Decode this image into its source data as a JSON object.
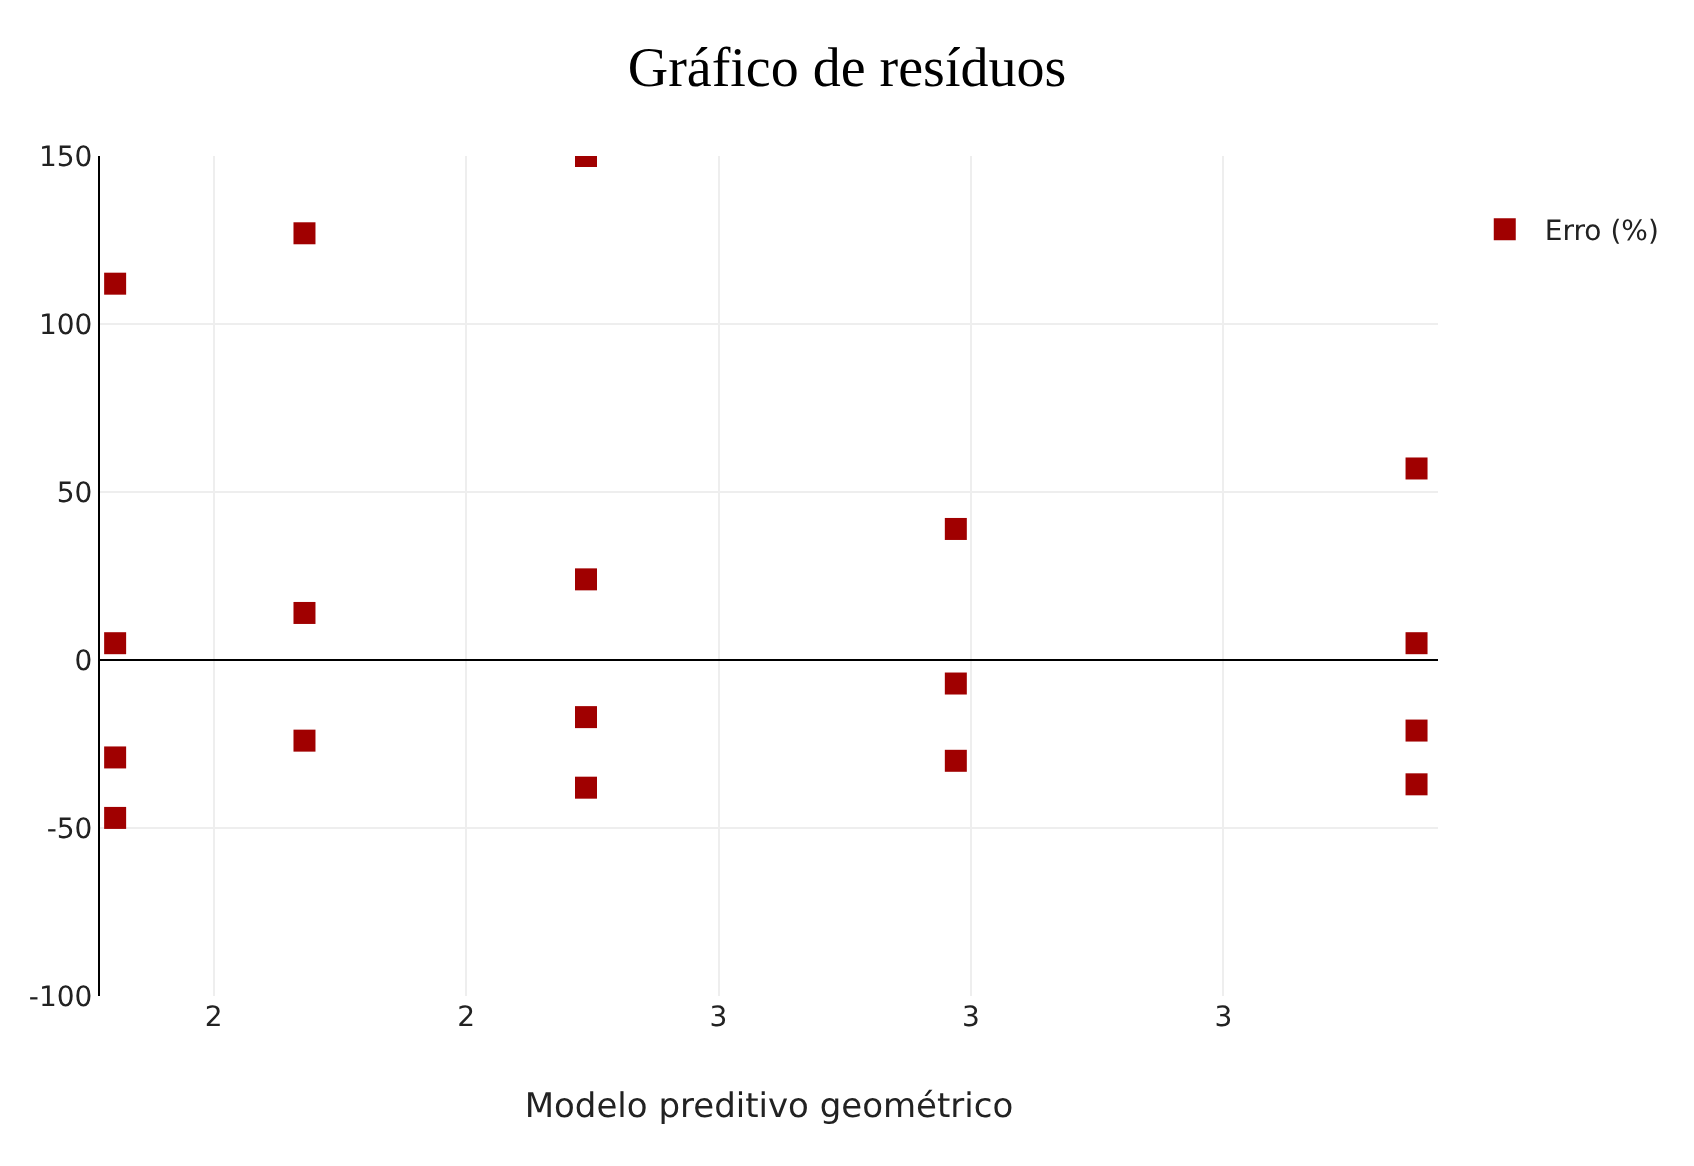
{
  "chart_data": {
    "type": "scatter",
    "title": "Gráfico de resíduos",
    "xlabel": "Modelo preditivo geométrico",
    "series": [
      {
        "name": "Erro (%)",
        "color": "#a00000",
        "x": [
          2.122,
          2.122,
          2.122,
          2.122,
          2.272,
          2.272,
          2.272,
          2.495,
          2.495,
          2.495,
          2.495,
          2.788,
          2.788,
          2.788,
          3.153,
          3.153,
          3.153,
          3.153
        ],
        "values": [
          112,
          5,
          -29,
          -47,
          127,
          14,
          -24,
          150,
          24,
          -17,
          -38,
          39,
          -7,
          -30,
          57,
          5,
          -21,
          -37
        ]
      }
    ],
    "xlim": [
      2.11,
      3.17
    ],
    "xticks": [
      {
        "value": 2.2,
        "label": "2"
      },
      {
        "value": 2.4,
        "label": "2"
      },
      {
        "value": 2.6,
        "label": "3"
      },
      {
        "value": 2.8,
        "label": "3"
      },
      {
        "value": 3.0,
        "label": "3"
      }
    ],
    "ylim": [
      -100,
      150
    ],
    "yticks": [
      -100,
      -50,
      0,
      50,
      100,
      150
    ],
    "grid": true,
    "legend": "right",
    "marker": "square"
  }
}
